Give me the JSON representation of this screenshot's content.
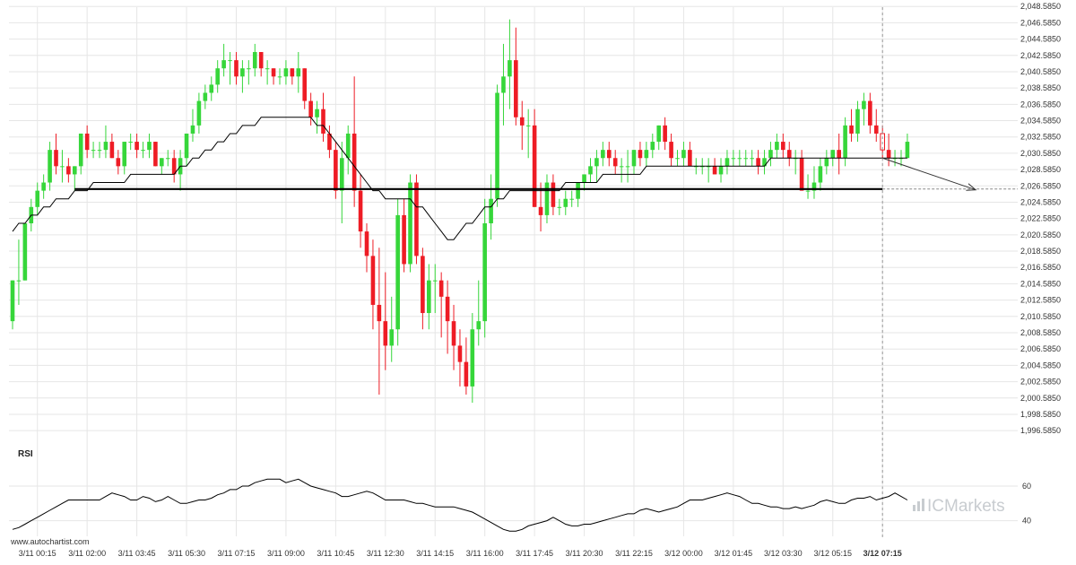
{
  "chart_data": {
    "type": "candlestick",
    "price_axis": {
      "range": [
        1995.5,
        2048.5
      ],
      "tick_labels": [
        "2,048.5850",
        "2,046.5850",
        "2,044.5850",
        "2,042.5850",
        "2,040.5850",
        "2,038.5850",
        "2,036.5850",
        "2,034.5850",
        "2,032.5850",
        "2,030.5850",
        "2,028.5850",
        "2,026.5850",
        "2,024.5850",
        "2,022.5850",
        "2,020.5850",
        "2,018.5850",
        "2,016.5850",
        "2,014.5850",
        "2,012.5850",
        "2,010.5850",
        "2,008.5850",
        "2,006.5850",
        "2,004.5850",
        "2,002.5850",
        "2,000.5850",
        "1,998.5850",
        "1,996.5850"
      ],
      "tick_values": [
        2048.585,
        2046.585,
        2044.585,
        2042.585,
        2040.585,
        2038.585,
        2036.585,
        2034.585,
        2032.585,
        2030.585,
        2028.585,
        2026.585,
        2024.585,
        2022.585,
        2020.585,
        2018.585,
        2016.585,
        2014.585,
        2012.585,
        2010.585,
        2008.585,
        2006.585,
        2004.585,
        2002.585,
        2000.585,
        1998.585,
        1996.585
      ]
    },
    "time_axis": {
      "labels": [
        "3/11 00:15",
        "3/11 02:00",
        "3/11 03:45",
        "3/11 05:30",
        "3/11 07:15",
        "3/11 09:00",
        "3/11 10:45",
        "3/11 12:30",
        "3/11 14:15",
        "3/11 16:00",
        "3/11 17:45",
        "3/11 20:30",
        "3/11 22:15",
        "3/12 00:00",
        "3/12 01:45",
        "3/12 03:30",
        "3/12 05:15",
        "3/12 07:15"
      ],
      "label_candle_index": [
        4,
        12,
        20,
        28,
        36,
        44,
        52,
        60,
        68,
        76,
        84,
        92,
        100,
        108,
        116,
        124,
        132,
        140
      ],
      "highlighted_label": "3/12 07:15"
    },
    "candles": [
      [
        2010,
        2015,
        2009,
        2015
      ],
      [
        2015,
        2020,
        2012,
        2015
      ],
      [
        2015,
        2022,
        2015,
        2022
      ],
      [
        2022,
        2025,
        2021,
        2024
      ],
      [
        2024,
        2027,
        2023,
        2026
      ],
      [
        2026,
        2028,
        2025,
        2027
      ],
      [
        2027,
        2032,
        2026,
        2031
      ],
      [
        2031,
        2033,
        2028,
        2029
      ],
      [
        2029,
        2031,
        2027,
        2029
      ],
      [
        2029,
        2030,
        2027,
        2028
      ],
      [
        2028,
        2029,
        2026,
        2029
      ],
      [
        2029,
        2033,
        2028,
        2033
      ],
      [
        2033,
        2034,
        2030,
        2031
      ],
      [
        2031,
        2032,
        2030,
        2031
      ],
      [
        2031,
        2032,
        2030,
        2031
      ],
      [
        2031,
        2034,
        2030,
        2032
      ],
      [
        2032,
        2033,
        2030,
        2030
      ],
      [
        2030,
        2031,
        2028,
        2029
      ],
      [
        2029,
        2032,
        2028,
        2032
      ],
      [
        2032,
        2033,
        2031,
        2032
      ],
      [
        2032,
        2033,
        2030,
        2031
      ],
      [
        2031,
        2032,
        2030,
        2031
      ],
      [
        2031,
        2033,
        2030,
        2032
      ],
      [
        2032,
        2032,
        2029,
        2029
      ],
      [
        2029,
        2030,
        2028,
        2030
      ],
      [
        2030,
        2031,
        2029,
        2030
      ],
      [
        2030,
        2031,
        2027,
        2028
      ],
      [
        2028,
        2031,
        2026,
        2030
      ],
      [
        2030,
        2033,
        2029,
        2033
      ],
      [
        2033,
        2036,
        2032,
        2034
      ],
      [
        2034,
        2038,
        2033,
        2037
      ],
      [
        2037,
        2039,
        2036,
        2038
      ],
      [
        2038,
        2040,
        2037,
        2039
      ],
      [
        2039,
        2042,
        2038,
        2041
      ],
      [
        2041,
        2044,
        2040,
        2042
      ],
      [
        2042,
        2043,
        2039,
        2042
      ],
      [
        2042,
        2043,
        2039,
        2040
      ],
      [
        2040,
        2042,
        2038,
        2041
      ],
      [
        2041,
        2042,
        2039,
        2041
      ],
      [
        2041,
        2044,
        2040,
        2043
      ],
      [
        2043,
        2043,
        2040,
        2041
      ],
      [
        2041,
        2042,
        2039,
        2041
      ],
      [
        2041,
        2041,
        2039,
        2040
      ],
      [
        2040,
        2041,
        2039,
        2040
      ],
      [
        2040,
        2042,
        2039,
        2041
      ],
      [
        2041,
        2041,
        2039,
        2040
      ],
      [
        2040,
        2043,
        2038,
        2041
      ],
      [
        2041,
        2041,
        2036,
        2037
      ],
      [
        2037,
        2038,
        2034,
        2035
      ],
      [
        2035,
        2037,
        2033,
        2036
      ],
      [
        2036,
        2038,
        2032,
        2033
      ],
      [
        2033,
        2034,
        2030,
        2031
      ],
      [
        2031,
        2032,
        2025,
        2026
      ],
      [
        2026,
        2032,
        2022,
        2030
      ],
      [
        2030,
        2034,
        2028,
        2033
      ],
      [
        2033,
        2040,
        2024,
        2026
      ],
      [
        2026,
        2028,
        2019,
        2021
      ],
      [
        2021,
        2022,
        2016,
        2018
      ],
      [
        2018,
        2020,
        2009,
        2012
      ],
      [
        2012,
        2019,
        2001,
        2010
      ],
      [
        2010,
        2016,
        2004,
        2007
      ],
      [
        2007,
        2013,
        2005,
        2009
      ],
      [
        2009,
        2025,
        2007,
        2023
      ],
      [
        2023,
        2025,
        2016,
        2017
      ],
      [
        2017,
        2028,
        2016,
        2027
      ],
      [
        2027,
        2028,
        2017,
        2018
      ],
      [
        2018,
        2019,
        2009,
        2011
      ],
      [
        2011,
        2017,
        2009,
        2015
      ],
      [
        2015,
        2017,
        2011,
        2015
      ],
      [
        2015,
        2016,
        2008,
        2013
      ],
      [
        2013,
        2015,
        2006,
        2010
      ],
      [
        2010,
        2012,
        2004,
        2007
      ],
      [
        2007,
        2009,
        2002,
        2005
      ],
      [
        2005,
        2008,
        2001,
        2002
      ],
      [
        2002,
        2011,
        2000,
        2009
      ],
      [
        2009,
        2015,
        2007,
        2010
      ],
      [
        2010,
        2025,
        2008,
        2022
      ],
      [
        2022,
        2028,
        2020,
        2025
      ],
      [
        2025,
        2039,
        2024,
        2038
      ],
      [
        2038,
        2044,
        2034,
        2040
      ],
      [
        2040,
        2047,
        2036,
        2042
      ],
      [
        2042,
        2046,
        2034,
        2035
      ],
      [
        2035,
        2037,
        2031,
        2034
      ],
      [
        2034,
        2036,
        2030,
        2034
      ],
      [
        2034,
        2036,
        2024,
        2024
      ],
      [
        2024,
        2027,
        2021,
        2023
      ],
      [
        2023,
        2028,
        2022,
        2027
      ],
      [
        2027,
        2028,
        2023,
        2024
      ],
      [
        2024,
        2025,
        2023,
        2024
      ],
      [
        2024,
        2026,
        2023,
        2025
      ],
      [
        2025,
        2026,
        2024,
        2025
      ],
      [
        2025,
        2027,
        2024,
        2027
      ],
      [
        2027,
        2028,
        2026,
        2028
      ],
      [
        2028,
        2030,
        2027,
        2029
      ],
      [
        2029,
        2031,
        2027,
        2030
      ],
      [
        2030,
        2032,
        2029,
        2031
      ],
      [
        2031,
        2032,
        2029,
        2030
      ],
      [
        2030,
        2031,
        2028,
        2029
      ],
      [
        2029,
        2030,
        2027,
        2029
      ],
      [
        2029,
        2031,
        2027,
        2029
      ],
      [
        2029,
        2031,
        2028,
        2031
      ],
      [
        2031,
        2032,
        2029,
        2030
      ],
      [
        2030,
        2032,
        2029,
        2031
      ],
      [
        2031,
        2033,
        2030,
        2032
      ],
      [
        2032,
        2034,
        2031,
        2034
      ],
      [
        2034,
        2035,
        2031,
        2032
      ],
      [
        2032,
        2033,
        2029,
        2030
      ],
      [
        2030,
        2031,
        2029,
        2030
      ],
      [
        2030,
        2032,
        2029,
        2031
      ],
      [
        2031,
        2032,
        2029,
        2029
      ],
      [
        2029,
        2030,
        2028,
        2029
      ],
      [
        2029,
        2030,
        2028,
        2029
      ],
      [
        2029,
        2030,
        2027,
        2029
      ],
      [
        2029,
        2030,
        2028,
        2028
      ],
      [
        2028,
        2030,
        2027,
        2029
      ],
      [
        2029,
        2031,
        2028,
        2030
      ],
      [
        2030,
        2031,
        2029,
        2030
      ],
      [
        2030,
        2031,
        2029,
        2030
      ],
      [
        2030,
        2031,
        2029,
        2030
      ],
      [
        2030,
        2031,
        2029,
        2030
      ],
      [
        2030,
        2031,
        2028,
        2029
      ],
      [
        2029,
        2031,
        2028,
        2030
      ],
      [
        2030,
        2032,
        2029,
        2031
      ],
      [
        2031,
        2033,
        2030,
        2032
      ],
      [
        2032,
        2033,
        2030,
        2031
      ],
      [
        2031,
        2032,
        2029,
        2030
      ],
      [
        2030,
        2031,
        2028,
        2030
      ],
      [
        2030,
        2031,
        2026,
        2026
      ],
      [
        2026,
        2028,
        2025,
        2026
      ],
      [
        2026,
        2029,
        2025,
        2027
      ],
      [
        2027,
        2030,
        2026,
        2029
      ],
      [
        2029,
        2031,
        2028,
        2030
      ],
      [
        2030,
        2031,
        2029,
        2031
      ],
      [
        2031,
        2033,
        2028,
        2030
      ],
      [
        2030,
        2035,
        2029,
        2034
      ],
      [
        2034,
        2036,
        2032,
        2033
      ],
      [
        2033,
        2037,
        2032,
        2036
      ],
      [
        2036,
        2038,
        2034,
        2037
      ],
      [
        2037,
        2038,
        2033,
        2034
      ],
      [
        2034,
        2036,
        2032,
        2033
      ],
      [
        2033,
        2034,
        2030,
        2031
      ],
      [
        2031,
        2033,
        2029,
        2030
      ],
      [
        2030,
        2031,
        2029,
        2030
      ],
      [
        2030,
        2031,
        2029,
        2030
      ],
      [
        2030,
        2033,
        2030,
        2032
      ]
    ],
    "moving_average": [
      2021,
      2022,
      2022,
      2023,
      2023,
      2024,
      2024,
      2025,
      2025,
      2025,
      2026,
      2026,
      2026,
      2027,
      2027,
      2027,
      2027,
      2027,
      2027,
      2028,
      2028,
      2028,
      2028,
      2028,
      2028,
      2028,
      2028,
      2029,
      2029,
      2030,
      2030,
      2031,
      2031,
      2032,
      2032,
      2033,
      2033,
      2034,
      2034,
      2034,
      2035,
      2035,
      2035,
      2035,
      2035,
      2035,
      2035,
      2035,
      2035,
      2034,
      2034,
      2033,
      2032,
      2031,
      2030,
      2029,
      2028,
      2027,
      2026,
      2026,
      2025,
      2025,
      2025,
      2025,
      2025,
      2024,
      2024,
      2023,
      2022,
      2021,
      2020,
      2020,
      2021,
      2022,
      2022,
      2023,
      2024,
      2024,
      2025,
      2025,
      2026,
      2026,
      2026,
      2026,
      2026,
      2026,
      2026,
      2026,
      2026,
      2027,
      2027,
      2027,
      2027,
      2027,
      2027,
      2028,
      2028,
      2028,
      2028,
      2028,
      2028,
      2028,
      2029,
      2029,
      2029,
      2029,
      2029,
      2029,
      2029,
      2029,
      2029,
      2029,
      2029,
      2029,
      2029,
      2029,
      2029,
      2029,
      2029,
      2029,
      2029,
      2029,
      2030,
      2030,
      2030,
      2030,
      2030,
      2030,
      2030,
      2030,
      2030,
      2030,
      2030,
      2030,
      2030,
      2030,
      2030,
      2030,
      2030,
      2030,
      2030,
      2030,
      2030,
      2030,
      2030
    ],
    "support_level": 2026.2,
    "support_from_index": 10,
    "support_to_index": 140,
    "current_candle_index": 140,
    "projection": {
      "to_index": 155,
      "to_price": 2026.1
    },
    "rsi": {
      "title": "RSI",
      "tick_labels": [
        "60",
        "40"
      ],
      "tick_values": [
        60,
        40
      ],
      "range": [
        31,
        74
      ],
      "values": [
        35,
        36,
        38,
        40,
        42,
        44,
        46,
        48,
        50,
        52,
        52,
        52,
        52,
        52,
        52,
        54,
        56,
        55,
        54,
        52,
        52,
        54,
        53,
        51,
        52,
        54,
        52,
        50,
        50,
        51,
        52,
        52,
        53,
        55,
        56,
        58,
        58,
        60,
        60,
        62,
        63,
        64,
        64,
        64,
        62,
        63,
        64,
        62,
        60,
        59,
        58,
        57,
        56,
        54,
        54,
        55,
        56,
        57,
        56,
        54,
        52,
        52,
        52,
        52,
        51,
        50,
        50,
        49,
        48,
        48,
        48,
        48,
        47,
        46,
        45,
        43,
        41,
        39,
        37,
        35,
        34,
        34,
        35,
        37,
        38,
        39,
        40,
        42,
        40,
        38,
        37,
        37,
        38,
        38,
        39,
        40,
        41,
        42,
        43,
        44,
        44,
        46,
        47,
        46,
        45,
        46,
        47,
        48,
        50,
        52,
        52,
        52,
        53,
        54,
        55,
        56,
        55,
        54,
        52,
        50,
        50,
        49,
        48,
        48,
        47,
        47,
        48,
        47,
        48,
        49,
        51,
        52,
        51,
        50,
        50,
        52,
        53,
        53,
        54,
        52,
        53,
        54,
        56,
        54,
        52
      ]
    }
  },
  "colors": {
    "up": "#36d63a",
    "down": "#ee1c25",
    "line": "#000000",
    "grid": "#e6e6e6"
  },
  "watermark": "www.autochartist.com",
  "brand": "ICMarkets"
}
